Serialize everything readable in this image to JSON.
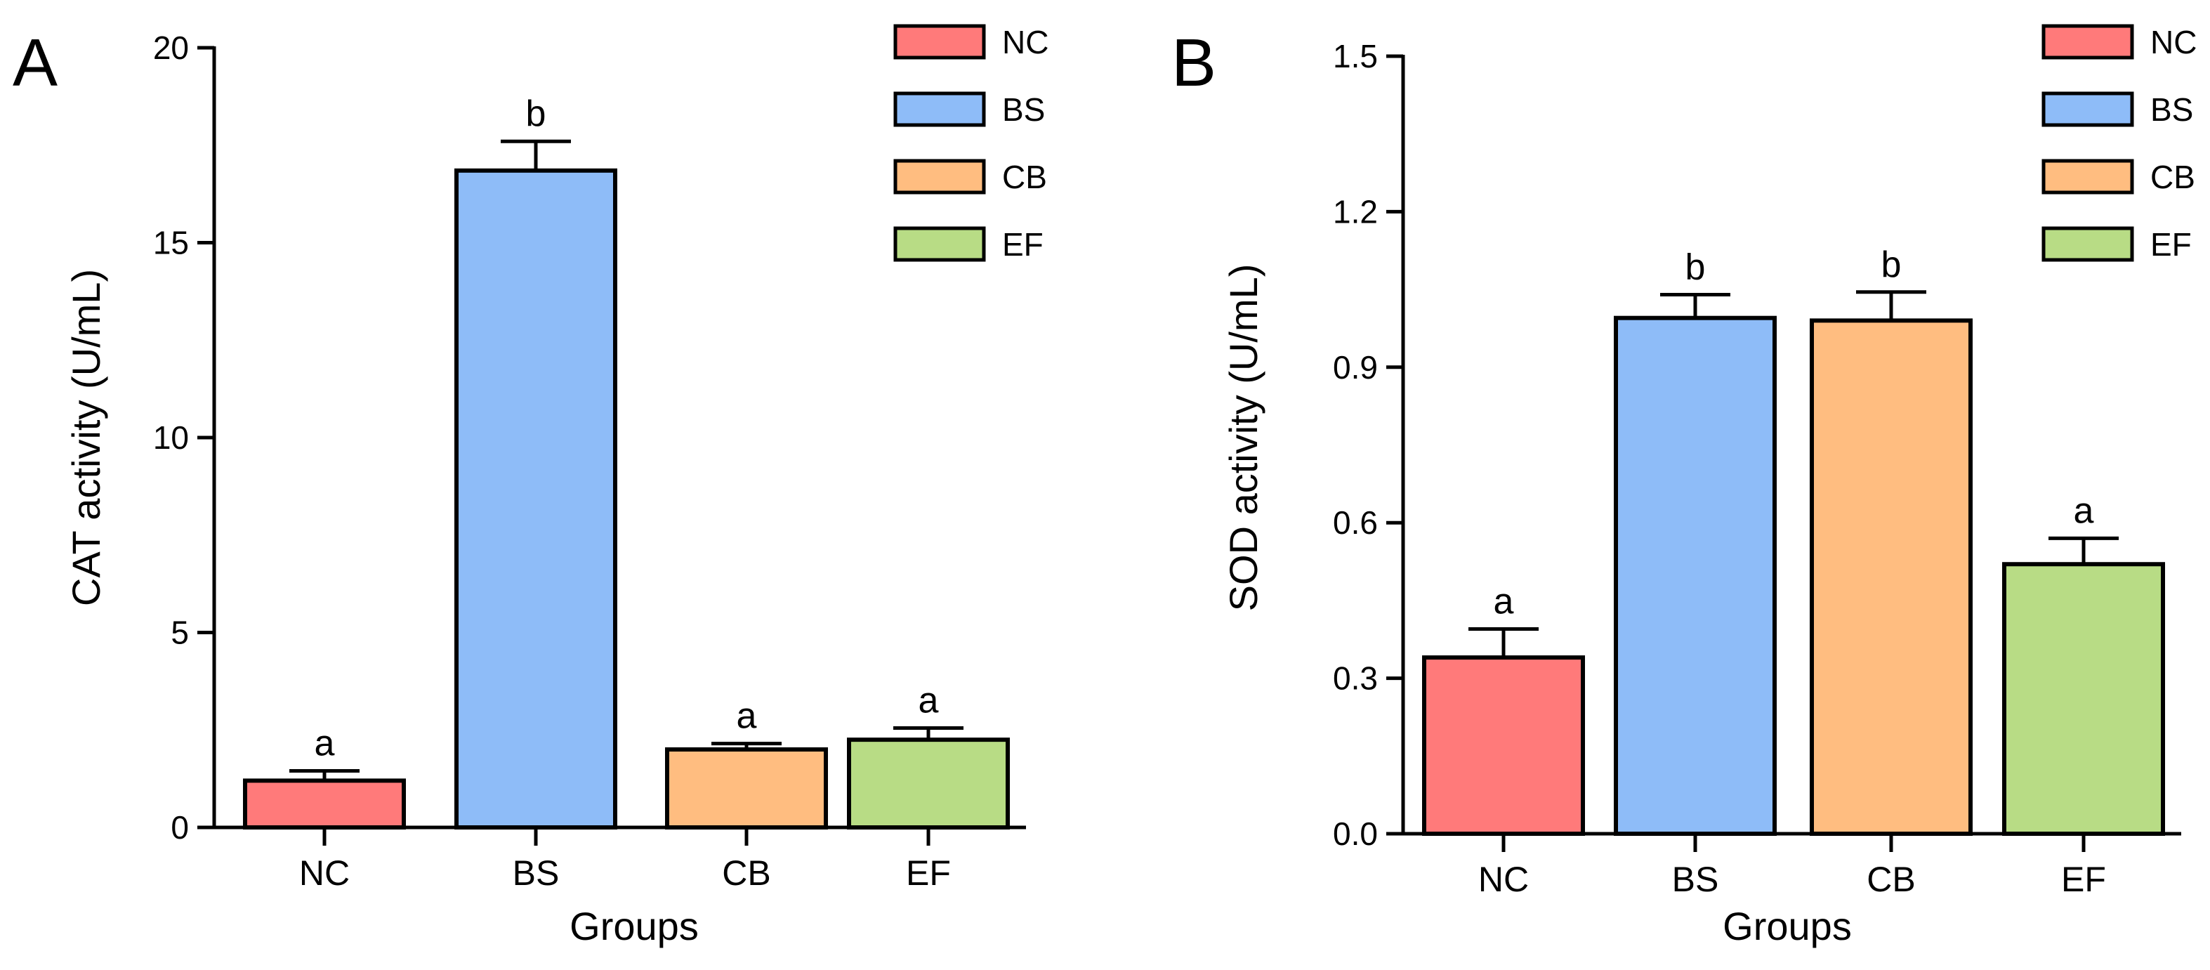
{
  "chart_data": [
    {
      "panel": "A",
      "type": "bar",
      "categories": [
        "NC",
        "BS",
        "CB",
        "EF"
      ],
      "values": [
        1.2,
        16.85,
        2.0,
        2.25
      ],
      "errors": [
        0.25,
        0.75,
        0.15,
        0.3
      ],
      "significance": [
        "a",
        "b",
        "a",
        "a"
      ],
      "colors": [
        "#ff7a7a",
        "#8ebcf8",
        "#ffbd80",
        "#b8dc85"
      ],
      "xlabel": "Groups",
      "ylabel": "CAT activity (U/mL)",
      "ylim": [
        0,
        20
      ],
      "yticks": [
        0,
        5,
        10,
        15,
        20
      ],
      "ytick_labels": [
        "0",
        "5",
        "10",
        "15",
        "20"
      ],
      "legend": [
        "NC",
        "BS",
        "CB",
        "EF"
      ],
      "legend_position": "top-right"
    },
    {
      "panel": "B",
      "type": "bar",
      "categories": [
        "NC",
        "BS",
        "CB",
        "EF"
      ],
      "values": [
        0.34,
        0.995,
        0.99,
        0.52
      ],
      "errors": [
        0.055,
        0.045,
        0.055,
        0.05
      ],
      "significance": [
        "a",
        "b",
        "b",
        "a"
      ],
      "colors": [
        "#ff7a7a",
        "#8ebcf8",
        "#ffbd80",
        "#b8dc85"
      ],
      "xlabel": "Groups",
      "ylabel": "SOD activity (U/mL)",
      "ylim": [
        0,
        1.5
      ],
      "yticks": [
        0,
        0.3,
        0.6,
        0.9,
        1.2,
        1.5
      ],
      "ytick_labels": [
        "0.0",
        "0.3",
        "0.6",
        "0.9",
        "1.2",
        "1.5"
      ],
      "legend": [
        "NC",
        "BS",
        "CB",
        "EF"
      ],
      "legend_position": "top-right"
    }
  ]
}
